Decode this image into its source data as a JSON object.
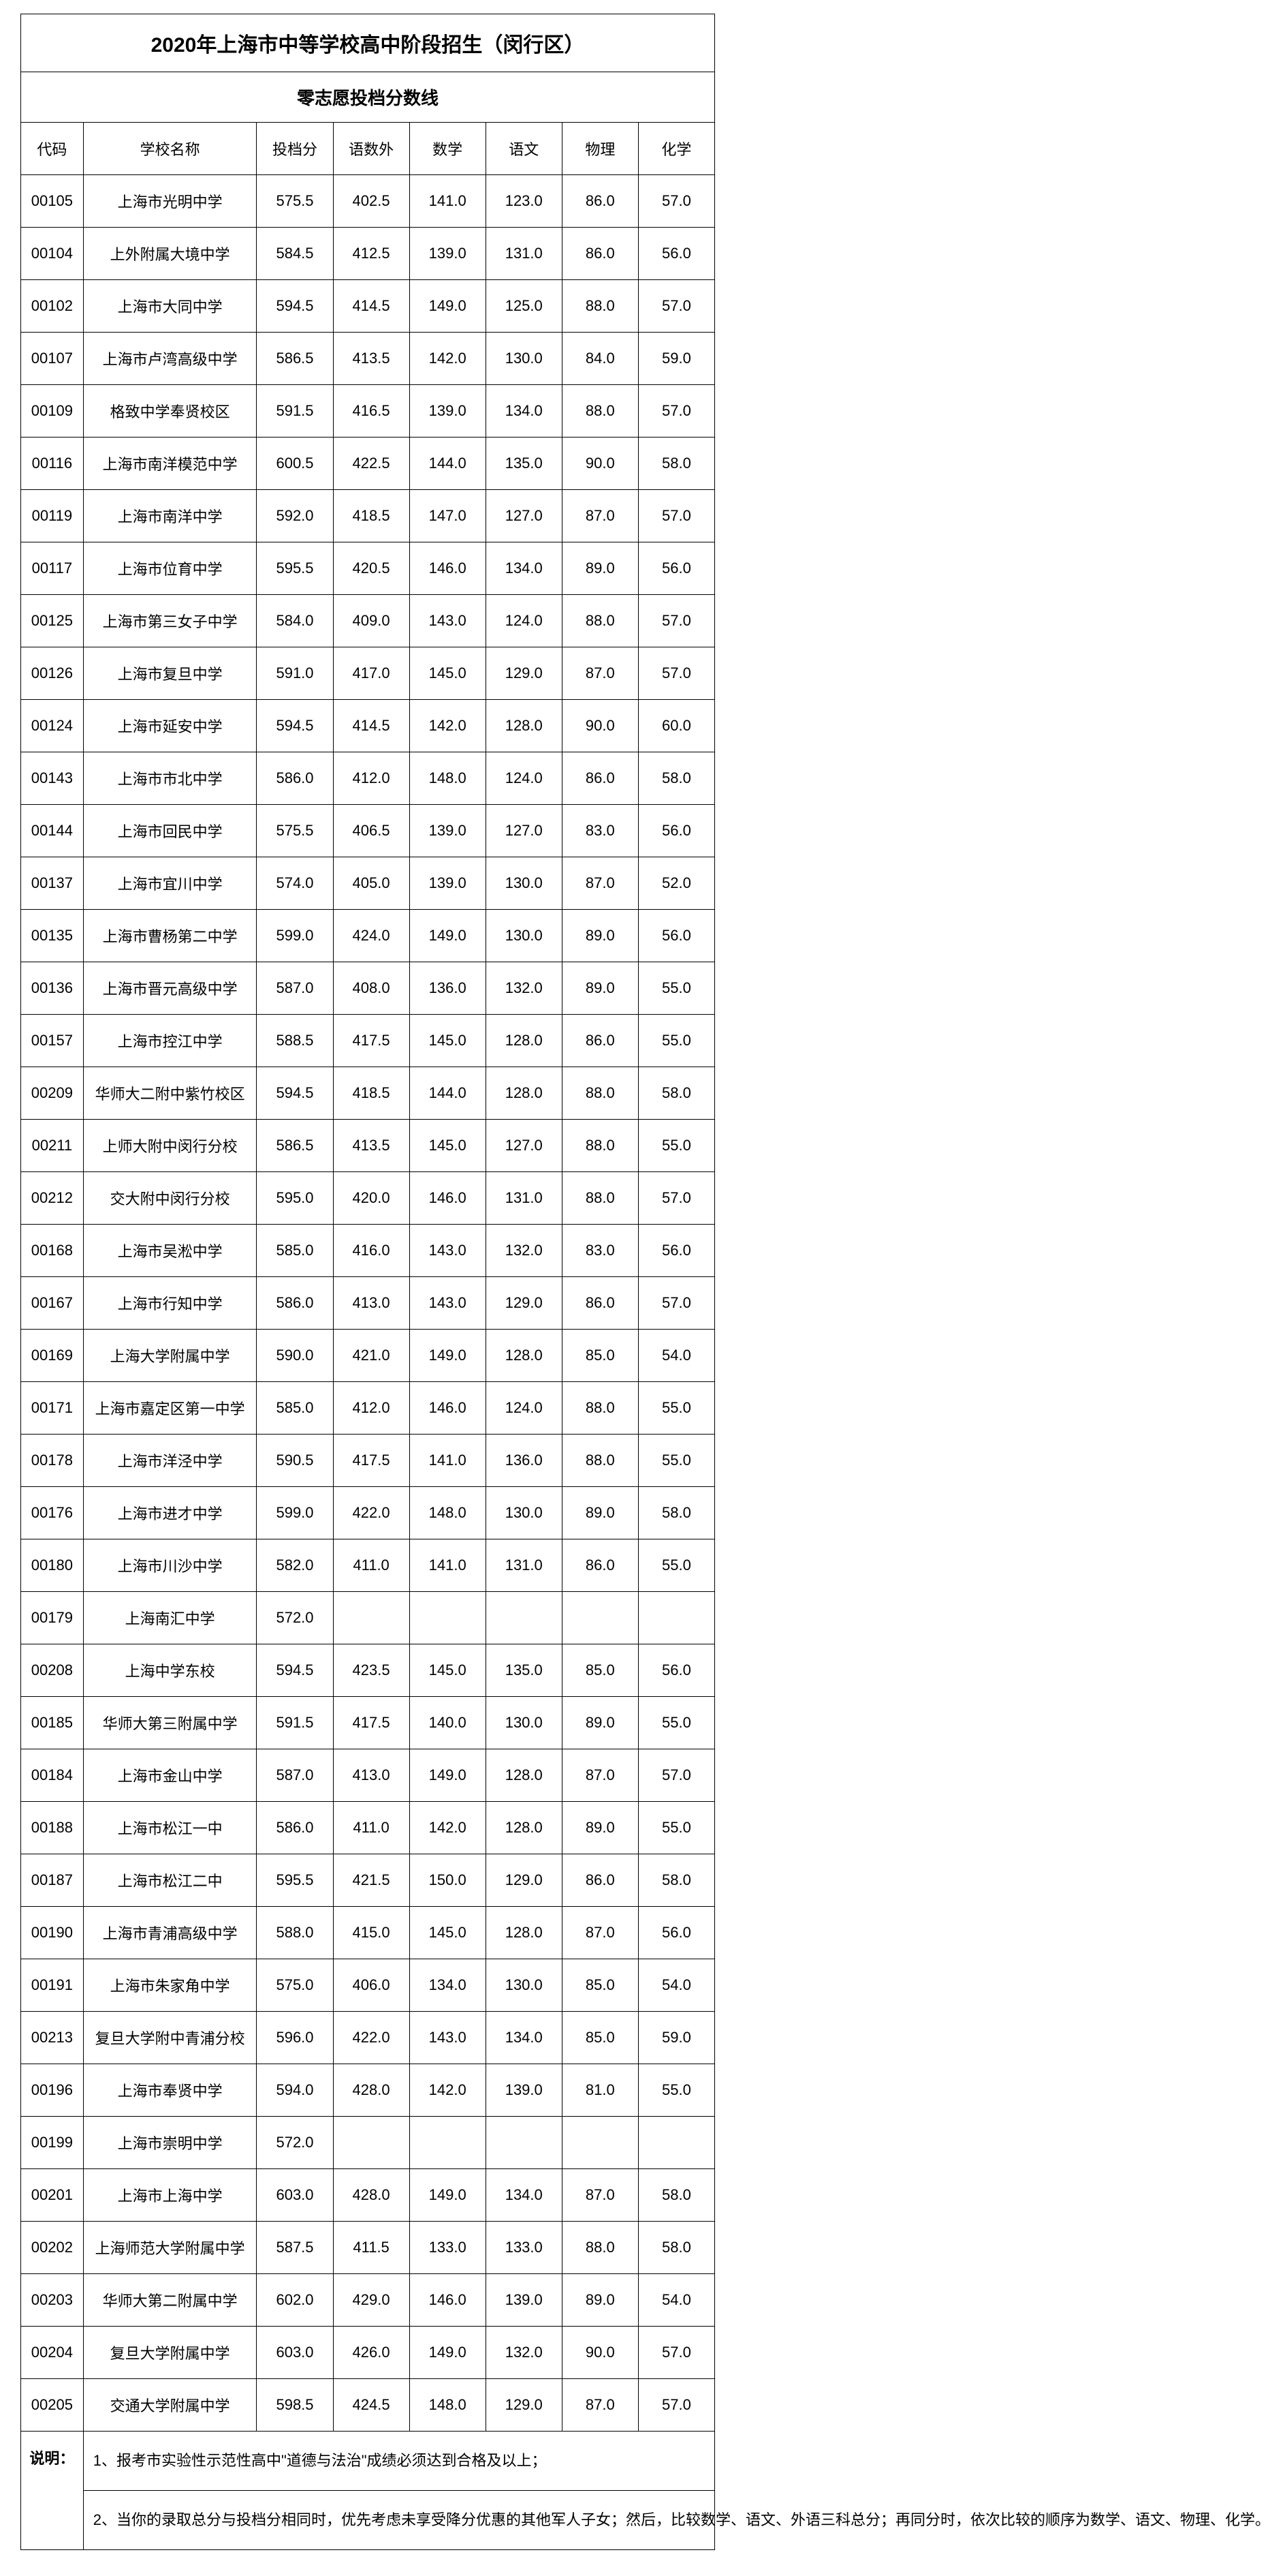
{
  "title": "2020年上海市中等学校高中阶段招生（闵行区）",
  "subtitle": "零志愿投档分数线",
  "columns": {
    "code": "代码",
    "school": "学校名称",
    "score": "投档分",
    "ysw": "语数外",
    "math": "数学",
    "chinese": "语文",
    "physics": "物理",
    "chemistry": "化学"
  },
  "rows": [
    {
      "code": "00105",
      "school": "上海市光明中学",
      "score": "575.5",
      "ysw": "402.5",
      "math": "141.0",
      "chinese": "123.0",
      "physics": "86.0",
      "chemistry": "57.0"
    },
    {
      "code": "00104",
      "school": "上外附属大境中学",
      "score": "584.5",
      "ysw": "412.5",
      "math": "139.0",
      "chinese": "131.0",
      "physics": "86.0",
      "chemistry": "56.0"
    },
    {
      "code": "00102",
      "school": "上海市大同中学",
      "score": "594.5",
      "ysw": "414.5",
      "math": "149.0",
      "chinese": "125.0",
      "physics": "88.0",
      "chemistry": "57.0"
    },
    {
      "code": "00107",
      "school": "上海市卢湾高级中学",
      "score": "586.5",
      "ysw": "413.5",
      "math": "142.0",
      "chinese": "130.0",
      "physics": "84.0",
      "chemistry": "59.0"
    },
    {
      "code": "00109",
      "school": "格致中学奉贤校区",
      "score": "591.5",
      "ysw": "416.5",
      "math": "139.0",
      "chinese": "134.0",
      "physics": "88.0",
      "chemistry": "57.0"
    },
    {
      "code": "00116",
      "school": "上海市南洋模范中学",
      "score": "600.5",
      "ysw": "422.5",
      "math": "144.0",
      "chinese": "135.0",
      "physics": "90.0",
      "chemistry": "58.0"
    },
    {
      "code": "00119",
      "school": "上海市南洋中学",
      "score": "592.0",
      "ysw": "418.5",
      "math": "147.0",
      "chinese": "127.0",
      "physics": "87.0",
      "chemistry": "57.0"
    },
    {
      "code": "00117",
      "school": "上海市位育中学",
      "score": "595.5",
      "ysw": "420.5",
      "math": "146.0",
      "chinese": "134.0",
      "physics": "89.0",
      "chemistry": "56.0"
    },
    {
      "code": "00125",
      "school": "上海市第三女子中学",
      "score": "584.0",
      "ysw": "409.0",
      "math": "143.0",
      "chinese": "124.0",
      "physics": "88.0",
      "chemistry": "57.0"
    },
    {
      "code": "00126",
      "school": "上海市复旦中学",
      "score": "591.0",
      "ysw": "417.0",
      "math": "145.0",
      "chinese": "129.0",
      "physics": "87.0",
      "chemistry": "57.0"
    },
    {
      "code": "00124",
      "school": "上海市延安中学",
      "score": "594.5",
      "ysw": "414.5",
      "math": "142.0",
      "chinese": "128.0",
      "physics": "90.0",
      "chemistry": "60.0"
    },
    {
      "code": "00143",
      "school": "上海市市北中学",
      "score": "586.0",
      "ysw": "412.0",
      "math": "148.0",
      "chinese": "124.0",
      "physics": "86.0",
      "chemistry": "58.0"
    },
    {
      "code": "00144",
      "school": "上海市回民中学",
      "score": "575.5",
      "ysw": "406.5",
      "math": "139.0",
      "chinese": "127.0",
      "physics": "83.0",
      "chemistry": "56.0"
    },
    {
      "code": "00137",
      "school": "上海市宜川中学",
      "score": "574.0",
      "ysw": "405.0",
      "math": "139.0",
      "chinese": "130.0",
      "physics": "87.0",
      "chemistry": "52.0"
    },
    {
      "code": "00135",
      "school": "上海市曹杨第二中学",
      "score": "599.0",
      "ysw": "424.0",
      "math": "149.0",
      "chinese": "130.0",
      "physics": "89.0",
      "chemistry": "56.0"
    },
    {
      "code": "00136",
      "school": "上海市晋元高级中学",
      "score": "587.0",
      "ysw": "408.0",
      "math": "136.0",
      "chinese": "132.0",
      "physics": "89.0",
      "chemistry": "55.0"
    },
    {
      "code": "00157",
      "school": "上海市控江中学",
      "score": "588.5",
      "ysw": "417.5",
      "math": "145.0",
      "chinese": "128.0",
      "physics": "86.0",
      "chemistry": "55.0"
    },
    {
      "code": "00209",
      "school": "华师大二附中紫竹校区",
      "score": "594.5",
      "ysw": "418.5",
      "math": "144.0",
      "chinese": "128.0",
      "physics": "88.0",
      "chemistry": "58.0"
    },
    {
      "code": "00211",
      "school": "上师大附中闵行分校",
      "score": "586.5",
      "ysw": "413.5",
      "math": "145.0",
      "chinese": "127.0",
      "physics": "88.0",
      "chemistry": "55.0"
    },
    {
      "code": "00212",
      "school": "交大附中闵行分校",
      "score": "595.0",
      "ysw": "420.0",
      "math": "146.0",
      "chinese": "131.0",
      "physics": "88.0",
      "chemistry": "57.0"
    },
    {
      "code": "00168",
      "school": "上海市吴淞中学",
      "score": "585.0",
      "ysw": "416.0",
      "math": "143.0",
      "chinese": "132.0",
      "physics": "83.0",
      "chemistry": "56.0"
    },
    {
      "code": "00167",
      "school": "上海市行知中学",
      "score": "586.0",
      "ysw": "413.0",
      "math": "143.0",
      "chinese": "129.0",
      "physics": "86.0",
      "chemistry": "57.0"
    },
    {
      "code": "00169",
      "school": "上海大学附属中学",
      "score": "590.0",
      "ysw": "421.0",
      "math": "149.0",
      "chinese": "128.0",
      "physics": "85.0",
      "chemistry": "54.0"
    },
    {
      "code": "00171",
      "school": "上海市嘉定区第一中学",
      "score": "585.0",
      "ysw": "412.0",
      "math": "146.0",
      "chinese": "124.0",
      "physics": "88.0",
      "chemistry": "55.0"
    },
    {
      "code": "00178",
      "school": "上海市洋泾中学",
      "score": "590.5",
      "ysw": "417.5",
      "math": "141.0",
      "chinese": "136.0",
      "physics": "88.0",
      "chemistry": "55.0"
    },
    {
      "code": "00176",
      "school": "上海市进才中学",
      "score": "599.0",
      "ysw": "422.0",
      "math": "148.0",
      "chinese": "130.0",
      "physics": "89.0",
      "chemistry": "58.0"
    },
    {
      "code": "00180",
      "school": "上海市川沙中学",
      "score": "582.0",
      "ysw": "411.0",
      "math": "141.0",
      "chinese": "131.0",
      "physics": "86.0",
      "chemistry": "55.0"
    },
    {
      "code": "00179",
      "school": "上海南汇中学",
      "score": "572.0",
      "ysw": "",
      "math": "",
      "chinese": "",
      "physics": "",
      "chemistry": ""
    },
    {
      "code": "00208",
      "school": "上海中学东校",
      "score": "594.5",
      "ysw": "423.5",
      "math": "145.0",
      "chinese": "135.0",
      "physics": "85.0",
      "chemistry": "56.0"
    },
    {
      "code": "00185",
      "school": "华师大第三附属中学",
      "score": "591.5",
      "ysw": "417.5",
      "math": "140.0",
      "chinese": "130.0",
      "physics": "89.0",
      "chemistry": "55.0"
    },
    {
      "code": "00184",
      "school": "上海市金山中学",
      "score": "587.0",
      "ysw": "413.0",
      "math": "149.0",
      "chinese": "128.0",
      "physics": "87.0",
      "chemistry": "57.0"
    },
    {
      "code": "00188",
      "school": "上海市松江一中",
      "score": "586.0",
      "ysw": "411.0",
      "math": "142.0",
      "chinese": "128.0",
      "physics": "89.0",
      "chemistry": "55.0"
    },
    {
      "code": "00187",
      "school": "上海市松江二中",
      "score": "595.5",
      "ysw": "421.5",
      "math": "150.0",
      "chinese": "129.0",
      "physics": "86.0",
      "chemistry": "58.0"
    },
    {
      "code": "00190",
      "school": "上海市青浦高级中学",
      "score": "588.0",
      "ysw": "415.0",
      "math": "145.0",
      "chinese": "128.0",
      "physics": "87.0",
      "chemistry": "56.0"
    },
    {
      "code": "00191",
      "school": "上海市朱家角中学",
      "score": "575.0",
      "ysw": "406.0",
      "math": "134.0",
      "chinese": "130.0",
      "physics": "85.0",
      "chemistry": "54.0"
    },
    {
      "code": "00213",
      "school": "复旦大学附中青浦分校",
      "score": "596.0",
      "ysw": "422.0",
      "math": "143.0",
      "chinese": "134.0",
      "physics": "85.0",
      "chemistry": "59.0"
    },
    {
      "code": "00196",
      "school": "上海市奉贤中学",
      "score": "594.0",
      "ysw": "428.0",
      "math": "142.0",
      "chinese": "139.0",
      "physics": "81.0",
      "chemistry": "55.0"
    },
    {
      "code": "00199",
      "school": "上海市崇明中学",
      "score": "572.0",
      "ysw": "",
      "math": "",
      "chinese": "",
      "physics": "",
      "chemistry": ""
    },
    {
      "code": "00201",
      "school": "上海市上海中学",
      "score": "603.0",
      "ysw": "428.0",
      "math": "149.0",
      "chinese": "134.0",
      "physics": "87.0",
      "chemistry": "58.0"
    },
    {
      "code": "00202",
      "school": "上海师范大学附属中学",
      "score": "587.5",
      "ysw": "411.5",
      "math": "133.0",
      "chinese": "133.0",
      "physics": "88.0",
      "chemistry": "58.0"
    },
    {
      "code": "00203",
      "school": "华师大第二附属中学",
      "score": "602.0",
      "ysw": "429.0",
      "math": "146.0",
      "chinese": "139.0",
      "physics": "89.0",
      "chemistry": "54.0"
    },
    {
      "code": "00204",
      "school": "复旦大学附属中学",
      "score": "603.0",
      "ysw": "426.0",
      "math": "149.0",
      "chinese": "132.0",
      "physics": "90.0",
      "chemistry": "57.0"
    },
    {
      "code": "00205",
      "school": "交通大学附属中学",
      "score": "598.5",
      "ysw": "424.5",
      "math": "148.0",
      "chinese": "129.0",
      "physics": "87.0",
      "chemistry": "57.0"
    }
  ],
  "notes": {
    "label": "说明：",
    "note1": "1、报考市实验性示范性高中\"道德与法治\"成绩必须达到合格及以上；",
    "note2": "2、当你的录取总分与投档分相同时，优先考虑未享受降分优惠的其他军人子女；然后，比较数学、语文、外语三科总分；再同分时，依次比较的顺序为数学、语文、物理、化学。"
  }
}
